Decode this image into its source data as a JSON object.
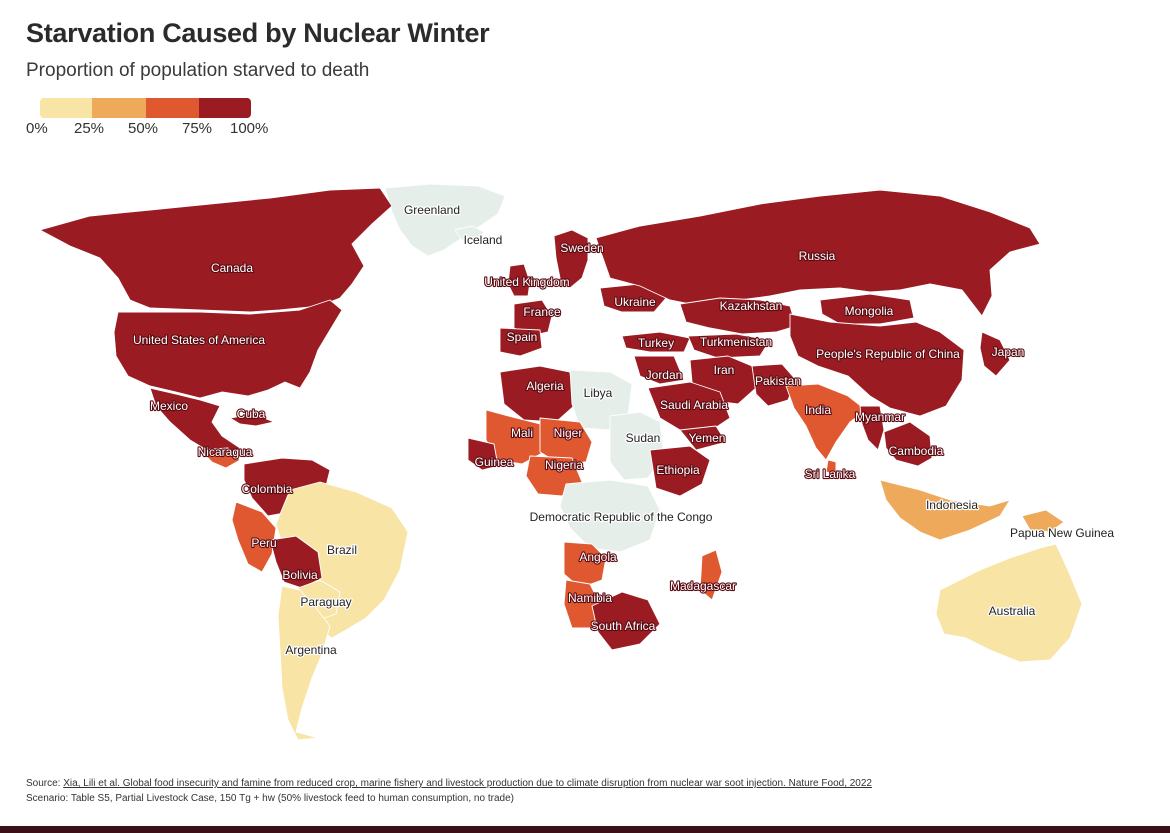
{
  "title": "Starvation Caused by Nuclear Winter",
  "subtitle": "Proportion of population starved to death",
  "legend": {
    "ticks": [
      "0%",
      "25%",
      "50%",
      "75%",
      "100%"
    ],
    "bins": [
      {
        "range": "0%–25%",
        "color": "#f8e4a4"
      },
      {
        "range": "25%–50%",
        "color": "#eea95a"
      },
      {
        "range": "50%–75%",
        "color": "#e0582f"
      },
      {
        "range": "75%–100%",
        "color": "#9b1b23"
      }
    ]
  },
  "colors": {
    "none": "#5c1419",
    "very_low": "#f8e4a4",
    "low": "#eea95a",
    "mid": "#e0582f",
    "high": "#9b1b23",
    "nodata": "#e5eee9"
  },
  "countries": [
    {
      "name": "Greenland",
      "band": "nodata"
    },
    {
      "name": "Iceland",
      "band": "nodata"
    },
    {
      "name": "Canada",
      "band": "high"
    },
    {
      "name": "United States of America",
      "band": "high"
    },
    {
      "name": "Mexico",
      "band": "high"
    },
    {
      "name": "Cuba",
      "band": "high"
    },
    {
      "name": "Nicaragua",
      "band": "mid"
    },
    {
      "name": "Colombia",
      "band": "high"
    },
    {
      "name": "Peru",
      "band": "mid"
    },
    {
      "name": "Brazil",
      "band": "very_low"
    },
    {
      "name": "Bolivia",
      "band": "high"
    },
    {
      "name": "Paraguay",
      "band": "very_low"
    },
    {
      "name": "Argentina",
      "band": "very_low"
    },
    {
      "name": "Sweden",
      "band": "high"
    },
    {
      "name": "United Kingdom",
      "band": "high"
    },
    {
      "name": "France",
      "band": "high"
    },
    {
      "name": "Spain",
      "band": "high"
    },
    {
      "name": "Ukraine",
      "band": "high"
    },
    {
      "name": "Turkey",
      "band": "high"
    },
    {
      "name": "Russia",
      "band": "high"
    },
    {
      "name": "Kazakhstan",
      "band": "high"
    },
    {
      "name": "Mongolia",
      "band": "high"
    },
    {
      "name": "Turkmenistan",
      "band": "high"
    },
    {
      "name": "People's Republic of China",
      "band": "high"
    },
    {
      "name": "Japan",
      "band": "high"
    },
    {
      "name": "Iran",
      "band": "high"
    },
    {
      "name": "Pakistan",
      "band": "high"
    },
    {
      "name": "India",
      "band": "mid"
    },
    {
      "name": "Sri Lanka",
      "band": "mid"
    },
    {
      "name": "Myanmar",
      "band": "high"
    },
    {
      "name": "Cambodia",
      "band": "high"
    },
    {
      "name": "Indonesia",
      "band": "low"
    },
    {
      "name": "Papua New Guinea",
      "band": "low"
    },
    {
      "name": "Australia",
      "band": "very_low"
    },
    {
      "name": "Jordan",
      "band": "high"
    },
    {
      "name": "Saudi Arabia",
      "band": "high"
    },
    {
      "name": "Yemen",
      "band": "high"
    },
    {
      "name": "Algeria",
      "band": "high"
    },
    {
      "name": "Libya",
      "band": "nodata"
    },
    {
      "name": "Mali",
      "band": "mid"
    },
    {
      "name": "Niger",
      "band": "mid"
    },
    {
      "name": "Sudan",
      "band": "nodata"
    },
    {
      "name": "Guinea",
      "band": "high"
    },
    {
      "name": "Nigeria",
      "band": "mid"
    },
    {
      "name": "Ethiopia",
      "band": "high"
    },
    {
      "name": "Democratic Republic of the Congo",
      "band": "nodata"
    },
    {
      "name": "Angola",
      "band": "mid"
    },
    {
      "name": "Namibia",
      "band": "mid"
    },
    {
      "name": "Madagascar",
      "band": "mid"
    },
    {
      "name": "South Africa",
      "band": "high"
    }
  ],
  "footer": {
    "source_prefix": "Source: ",
    "source_text": "Xia, Lili et al. Global food insecurity and famine from reduced crop, marine fishery and livestock production due to climate disruption from nuclear war soot injection. Nature Food, 2022",
    "scenario": "Scenario: Table S5, Partial Livestock Case, 150 Tg + hw (50% livestock feed to human consumption, no trade)"
  }
}
